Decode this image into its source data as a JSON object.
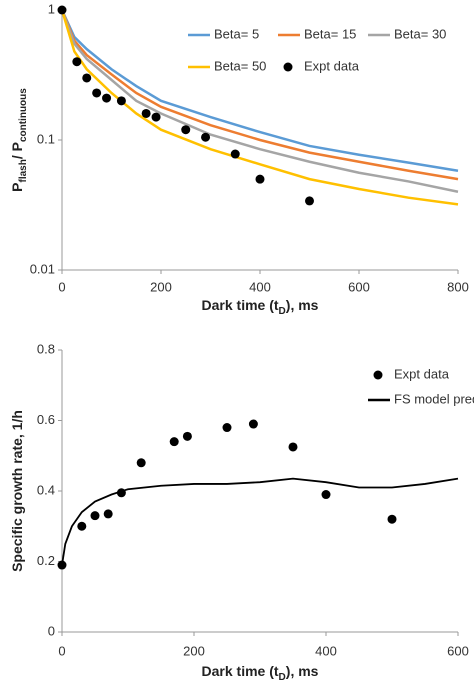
{
  "chart_data": [
    {
      "type": "line",
      "ylog": true,
      "legend": "upper right",
      "ylabel": [
        "P",
        "flash",
        "/ P",
        "continuous"
      ],
      "xlabel": [
        "Dark time (t",
        "D",
        "), ms"
      ],
      "xlim": [
        0,
        800
      ],
      "xticks": [
        0,
        200,
        400,
        600,
        800
      ],
      "ylim": [
        0.01,
        1
      ],
      "yticks": [
        0.01,
        0.1,
        1
      ],
      "x": [
        0,
        25,
        50,
        100,
        150,
        200,
        300,
        400,
        500,
        600,
        700,
        800
      ],
      "series": [
        {
          "name": "Beta= 5",
          "color": "#5b9bd5",
          "values": [
            1,
            0.62,
            0.5,
            0.35,
            0.26,
            0.2,
            0.15,
            0.115,
            0.09,
            0.077,
            0.067,
            0.058
          ]
        },
        {
          "name": "Beta= 15",
          "color": "#ed7d31",
          "values": [
            1,
            0.58,
            0.45,
            0.32,
            0.23,
            0.18,
            0.13,
            0.1,
            0.08,
            0.068,
            0.058,
            0.05
          ]
        },
        {
          "name": "Beta= 30",
          "color": "#a5a5a5",
          "values": [
            1,
            0.55,
            0.42,
            0.29,
            0.2,
            0.16,
            0.11,
            0.085,
            0.068,
            0.056,
            0.048,
            0.04
          ]
        },
        {
          "name": "Beta= 50",
          "color": "#ffc000",
          "values": [
            1,
            0.48,
            0.35,
            0.23,
            0.16,
            0.12,
            0.085,
            0.065,
            0.05,
            0.042,
            0.036,
            0.032
          ]
        },
        {
          "name": "Expt data",
          "color": "#000000",
          "style": "markers",
          "x": [
            0,
            30,
            50,
            70,
            90,
            120,
            170,
            190,
            250,
            290,
            350,
            400,
            500
          ],
          "values": [
            1,
            0.4,
            0.3,
            0.23,
            0.21,
            0.2,
            0.16,
            0.15,
            0.12,
            0.105,
            0.078,
            0.05,
            0.034
          ]
        }
      ]
    },
    {
      "type": "line",
      "ylog": false,
      "legend": "upper right",
      "ylabel": [
        "Specific growth rate, 1/h"
      ],
      "xlabel": [
        "Dark time (t",
        "D",
        "), ms"
      ],
      "xlim": [
        0,
        600
      ],
      "xticks": [
        0,
        200,
        400,
        600
      ],
      "ylim": [
        0,
        0.8
      ],
      "yticks": [
        0,
        0.2,
        0.4,
        0.6,
        0.8
      ],
      "x": [
        0,
        5,
        15,
        30,
        50,
        75,
        100,
        150,
        200,
        250,
        300,
        350,
        400,
        450,
        500,
        550,
        600
      ],
      "series": [
        {
          "name": "Expt data",
          "color": "#000000",
          "style": "markers",
          "x": [
            0,
            30,
            50,
            70,
            90,
            120,
            170,
            190,
            250,
            290,
            350,
            400,
            500
          ],
          "values": [
            0.19,
            0.3,
            0.33,
            0.335,
            0.395,
            0.48,
            0.54,
            0.555,
            0.58,
            0.59,
            0.525,
            0.39,
            0.32
          ]
        },
        {
          "name": "FS model pred",
          "color": "#000000",
          "values": [
            0.19,
            0.25,
            0.3,
            0.34,
            0.37,
            0.39,
            0.405,
            0.415,
            0.42,
            0.42,
            0.425,
            0.435,
            0.425,
            0.41,
            0.41,
            0.42,
            0.435
          ]
        }
      ]
    }
  ]
}
